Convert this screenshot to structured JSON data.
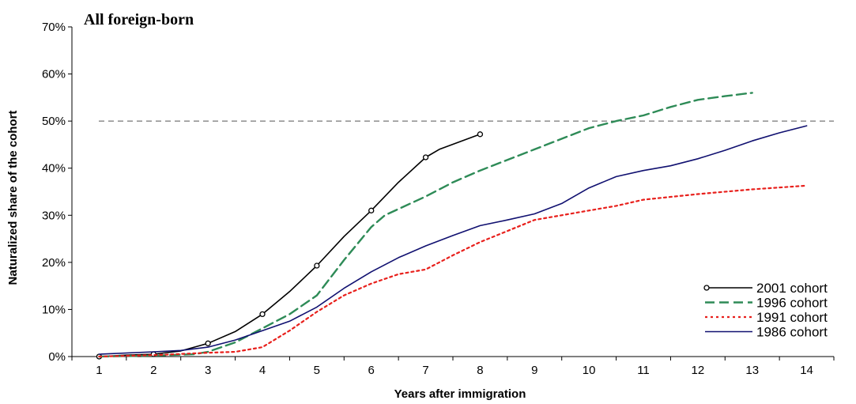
{
  "chart_data": {
    "type": "line",
    "title": "All foreign-born",
    "xlabel": "Years after immigration",
    "ylabel": "Naturalized share of the cohort",
    "categories": [
      1,
      2,
      3,
      4,
      5,
      6,
      7,
      8,
      9,
      10,
      11,
      12,
      13,
      14
    ],
    "ytick_labels": [
      "0%",
      "10%",
      "20%",
      "30%",
      "40%",
      "50%",
      "60%",
      "70%"
    ],
    "ylim": [
      0,
      70
    ],
    "xlim": [
      0.5,
      14.5
    ],
    "grid": false,
    "legend_position": "bottom-right",
    "reference_line": {
      "y": 50,
      "style": "dashed"
    },
    "series": [
      {
        "name": "2001 cohort",
        "color": "#000000",
        "dash": "solid",
        "marker": "circle",
        "x": [
          1,
          1.5,
          2,
          2.5,
          3,
          3.5,
          4,
          4.5,
          5,
          5.5,
          6,
          6.5,
          7,
          7.25,
          8
        ],
        "y": [
          0,
          0.3,
          0.5,
          1.2,
          2.8,
          5.3,
          9.0,
          13.8,
          19.3,
          25.5,
          31.0,
          37.0,
          42.3,
          44.0,
          47.2
        ],
        "markers_at": [
          1,
          2,
          3,
          4,
          5,
          6,
          7,
          8
        ]
      },
      {
        "name": "1996 cohort",
        "color": "#2e8b57",
        "dash": "long-dash",
        "marker": "none",
        "x": [
          1,
          2,
          2.75,
          3,
          3.5,
          4,
          4.5,
          5,
          5.5,
          6,
          6.25,
          7,
          7.5,
          8,
          9,
          10,
          10.5,
          11,
          11.5,
          12,
          12.5,
          13
        ],
        "y": [
          0,
          0.2,
          0.5,
          1.0,
          3.0,
          6.0,
          9.0,
          13.0,
          20.5,
          27.5,
          30.0,
          34.0,
          37.0,
          39.5,
          44.0,
          48.5,
          50.0,
          51.2,
          53.0,
          54.5,
          55.3,
          56.0
        ]
      },
      {
        "name": "1991 cohort",
        "color": "#e8201c",
        "dash": "dotted",
        "marker": "none",
        "x": [
          1,
          2,
          3,
          3.5,
          4,
          4.5,
          5,
          5.5,
          6,
          6.5,
          7,
          7.5,
          8,
          9,
          10,
          10.5,
          11,
          12,
          13,
          14
        ],
        "y": [
          0,
          0.3,
          0.8,
          1.0,
          2.0,
          5.5,
          9.5,
          13.0,
          15.5,
          17.5,
          18.5,
          21.5,
          24.3,
          29.0,
          31.0,
          32.0,
          33.3,
          34.5,
          35.5,
          36.3
        ]
      },
      {
        "name": "1986 cohort",
        "color": "#101070",
        "dash": "solid",
        "marker": "none",
        "x": [
          1,
          2,
          2.5,
          3,
          3.5,
          4,
          4.5,
          5,
          5.5,
          6,
          6.5,
          7,
          7.5,
          8,
          8.5,
          9,
          9.5,
          10,
          10.5,
          11,
          11.5,
          12,
          12.5,
          13,
          13.5,
          14
        ],
        "y": [
          0.5,
          1.0,
          1.3,
          2.0,
          3.5,
          5.5,
          7.5,
          10.5,
          14.5,
          18.0,
          21.0,
          23.5,
          25.7,
          27.8,
          29.0,
          30.3,
          32.5,
          35.8,
          38.2,
          39.5,
          40.5,
          42.0,
          43.8,
          45.8,
          47.5,
          49.0
        ]
      }
    ]
  }
}
